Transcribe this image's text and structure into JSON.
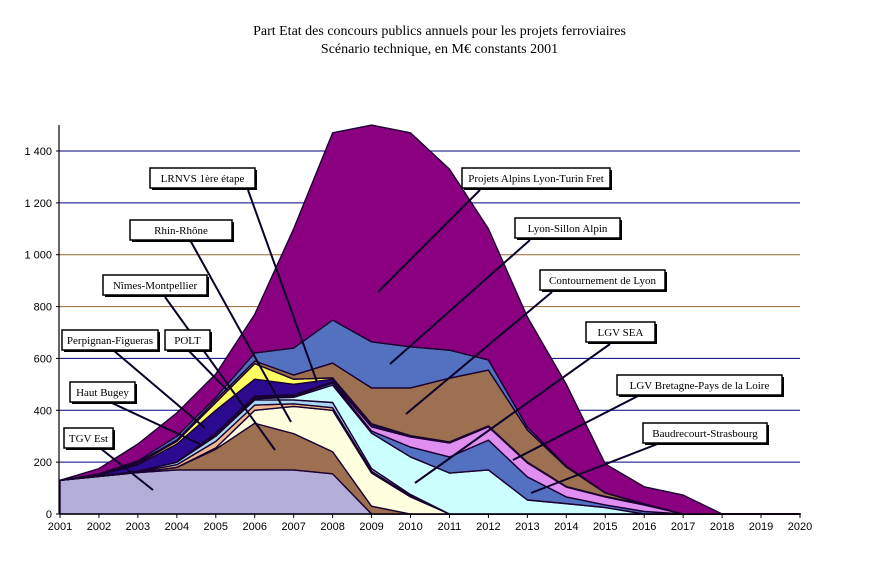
{
  "chart_data": {
    "type": "area",
    "stacked": true,
    "title": "Part Etat des concours publics annuels pour les projets ferroviaires",
    "subtitle": "Scénario technique, en M€ constants 2001",
    "xlabel": "",
    "ylabel": "",
    "ylim": [
      0,
      1500
    ],
    "yticks": [
      0,
      200,
      400,
      600,
      800,
      1000,
      1200,
      1400
    ],
    "ytick_labels": [
      "0",
      "200",
      "400",
      "600",
      "800",
      "1 000",
      "1 200",
      "1 400"
    ],
    "x": [
      2001,
      2002,
      2003,
      2004,
      2005,
      2006,
      2007,
      2008,
      2009,
      2010,
      2011,
      2012,
      2013,
      2014,
      2015,
      2016,
      2017,
      2018,
      2019,
      2020
    ],
    "x_labels": [
      "2001",
      "2002",
      "2003",
      "2004",
      "2005",
      "2006",
      "2007",
      "2008",
      "2009",
      "2010",
      "2011",
      "2012",
      "2013",
      "2014",
      "2015",
      "2016",
      "2017",
      "2018",
      "2019",
      "2020"
    ],
    "grid": true,
    "series": [
      {
        "name": "TGV Est",
        "color": "#b3aed8",
        "values": [
          130,
          145,
          160,
          170,
          170,
          170,
          170,
          155,
          0,
          0,
          0,
          0,
          0,
          0,
          0,
          0,
          0,
          0,
          0,
          0
        ]
      },
      {
        "name": "Rhin-Rhône",
        "color": "#9c7050",
        "values": [
          0,
          0,
          0,
          10,
          80,
          180,
          140,
          85,
          30,
          0,
          0,
          0,
          0,
          0,
          0,
          0,
          0,
          0,
          0,
          0
        ]
      },
      {
        "name": "LRNVS 1ère étape",
        "color": "#ffffe0",
        "values": [
          0,
          0,
          0,
          0,
          5,
          50,
          105,
          160,
          128,
          66,
          0,
          0,
          0,
          0,
          0,
          0,
          0,
          0,
          0,
          0
        ]
      },
      {
        "name": "Perpignan-Figueras",
        "color": "#f0b890",
        "values": [
          0,
          0,
          2,
          10,
          25,
          20,
          10,
          10,
          7,
          4,
          0,
          0,
          0,
          0,
          0,
          0,
          0,
          0,
          0,
          0
        ]
      },
      {
        "name": "Haut Bugey",
        "color": "#a8d8f0",
        "values": [
          0,
          2,
          3,
          10,
          20,
          20,
          15,
          20,
          10,
          5,
          0,
          0,
          0,
          0,
          0,
          0,
          0,
          0,
          0,
          0
        ]
      },
      {
        "name": "LGV SEA",
        "color": "#ccffff",
        "values": [
          0,
          0,
          0,
          0,
          5,
          5,
          10,
          67,
          137,
          145,
          158,
          170,
          54,
          40,
          25,
          0,
          0,
          0,
          0,
          0
        ]
      },
      {
        "name": "LGV Bretagne-Pays de la Loire",
        "color": "#5470c0",
        "values": [
          0,
          0,
          0,
          0,
          5,
          5,
          5,
          8,
          8,
          38,
          62,
          115,
          89,
          26,
          10,
          10,
          0,
          0,
          0,
          0
        ]
      },
      {
        "name": "Baudrecourt-Strasbourg",
        "color": "#e08ef0",
        "values": [
          0,
          0,
          0,
          0,
          2,
          5,
          5,
          5,
          16,
          39,
          54,
          51,
          54,
          38,
          31,
          25,
          0,
          0,
          0,
          0
        ]
      },
      {
        "name": "Nîmes-Montpellier",
        "color": "#2c0a90",
        "values": [
          0,
          3,
          25,
          70,
          88,
          65,
          40,
          10,
          9,
          3,
          2,
          2,
          1,
          1,
          1,
          1,
          0,
          0,
          0,
          0
        ]
      },
      {
        "name": "POLT",
        "color": "#ffff60",
        "values": [
          0,
          0,
          5,
          10,
          30,
          60,
          20,
          5,
          3,
          2,
          2,
          2,
          2,
          1,
          1,
          1,
          0,
          0,
          0,
          0
        ]
      },
      {
        "name": "Contournement de Lyon",
        "color": "#9c7050",
        "values": [
          0,
          2,
          5,
          5,
          10,
          10,
          16,
          57,
          138,
          184,
          246,
          215,
          124,
          75,
          13,
          1,
          0,
          0,
          0,
          0
        ]
      },
      {
        "name": "Lyon-Sillon Alpin",
        "color": "#5470c0",
        "values": [
          0,
          3,
          5,
          15,
          10,
          31,
          104,
          166,
          178,
          159,
          108,
          39,
          11,
          4,
          1,
          1,
          0,
          0,
          0,
          0
        ]
      },
      {
        "name": "Projets Alpins Lyon-Turin Fret",
        "color": "#8b0080",
        "values": [
          0,
          20,
          65,
          90,
          90,
          149,
          460,
          722,
          836,
          825,
          698,
          506,
          425,
          315,
          111,
          66,
          73,
          0,
          0,
          0
        ]
      }
    ],
    "annotations": [
      "LRNVS 1ère étape",
      "Rhin-Rhône",
      "Nîmes-Montpellier",
      "Perpignan-Figueras",
      "POLT",
      "Haut Bugey",
      "TGV Est",
      "Projets Alpins Lyon-Turin Fret",
      "Lyon-Sillon Alpin",
      "Contournement de Lyon",
      "LGV SEA",
      "LGV Bretagne-Pays de la Loire",
      "Baudrecourt-Strasbourg"
    ]
  }
}
